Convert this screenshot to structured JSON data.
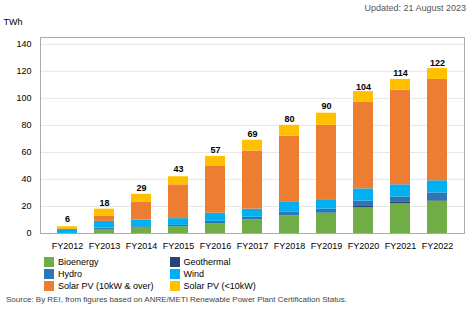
{
  "chart_data": {
    "type": "bar",
    "stacked": true,
    "categories": [
      "FY2012",
      "FY2013",
      "FY2014",
      "FY2015",
      "FY2016",
      "FY2017",
      "FY2018",
      "FY2019",
      "FY2020",
      "FY2021",
      "FY2022"
    ],
    "series": [
      {
        "name": "Bioenergy",
        "color": "#70ad47",
        "values": [
          0,
          3,
          4,
          5,
          7,
          10,
          13,
          15,
          19,
          22,
          24
        ]
      },
      {
        "name": "Geothermal",
        "color": "#264478",
        "values": [
          0,
          0,
          0,
          0,
          0,
          0,
          0,
          0,
          1,
          1,
          1
        ]
      },
      {
        "name": "Hydro",
        "color": "#2e75b6",
        "values": [
          0,
          1,
          1,
          1,
          2,
          2,
          3,
          3,
          4,
          4,
          5
        ]
      },
      {
        "name": "Wind",
        "color": "#00b0f0",
        "values": [
          3,
          5,
          5,
          5,
          6,
          6,
          7,
          7,
          9,
          9,
          9
        ]
      },
      {
        "name": "Solar PV (10kW & over)",
        "color": "#ed7d31",
        "values": [
          0,
          4,
          13,
          25,
          35,
          43,
          49,
          55,
          64,
          70,
          75
        ]
      },
      {
        "name": "Solar PV (<10kW)",
        "color": "#ffc000",
        "values": [
          2,
          5,
          6,
          6,
          7,
          8,
          8,
          9,
          8,
          8,
          8
        ]
      }
    ],
    "totals": [
      6,
      18,
      29,
      43,
      57,
      69,
      80,
      90,
      104,
      114,
      122
    ],
    "ylabel": "TWh",
    "ylim": [
      0,
      145
    ],
    "yticks": [
      0,
      20,
      40,
      60,
      80,
      100,
      120,
      140
    ],
    "grid": true,
    "legend": "bottom",
    "annotations": [
      "Updated: 21 August 2023",
      "Source: By REI, from figures based on ANRE/METI Renewable Power Plant Certification Status."
    ]
  }
}
